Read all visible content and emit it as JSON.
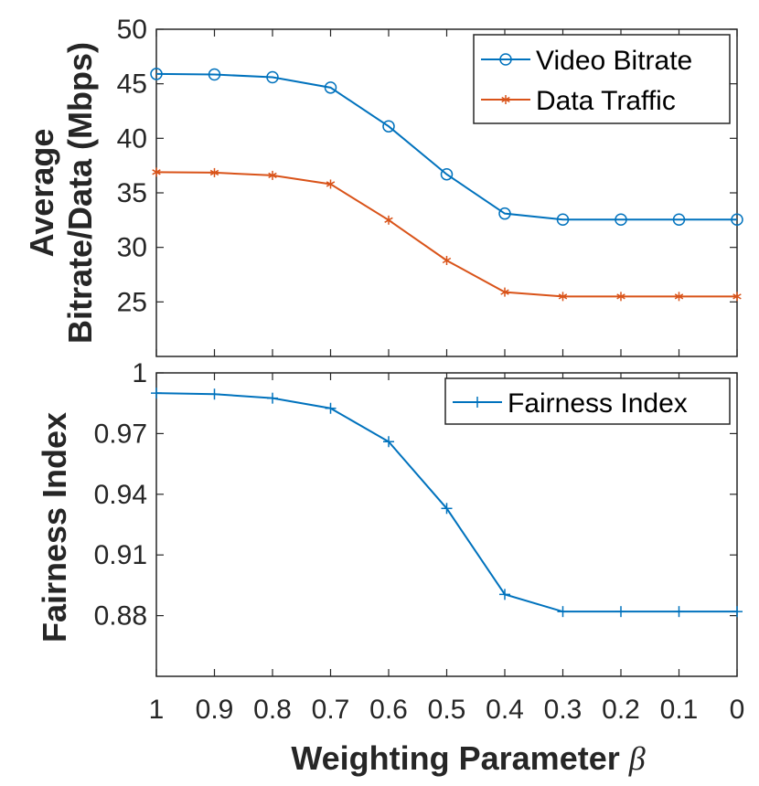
{
  "chart_data": [
    {
      "type": "line",
      "ylabel_line1": "Average",
      "ylabel_line2": "Bitrate/Data (Mbps)",
      "xlim": [
        1,
        0
      ],
      "ylim": [
        20,
        50
      ],
      "yticks": [
        25,
        30,
        35,
        40,
        45,
        50
      ],
      "x": [
        1,
        0.9,
        0.8,
        0.7,
        0.6,
        0.5,
        0.4,
        0.3,
        0.2,
        0.1,
        0
      ],
      "legend_position": "top-right",
      "series": [
        {
          "name": "Video Bitrate",
          "marker": "circle",
          "color": "#0072BD",
          "values": [
            45.9,
            45.85,
            45.6,
            44.65,
            41.1,
            36.7,
            33.1,
            32.55,
            32.55,
            32.55,
            32.55
          ]
        },
        {
          "name": "Data Traffic",
          "marker": "asterisk",
          "color": "#D95319",
          "values": [
            36.9,
            36.85,
            36.6,
            35.8,
            32.5,
            28.8,
            25.9,
            25.5,
            25.5,
            25.5,
            25.5
          ]
        }
      ]
    },
    {
      "type": "line",
      "ylabel": "Fairness Index",
      "xlabel": "Weighting Parameter",
      "xlabel_symbol": "β",
      "xlim": [
        1,
        0
      ],
      "ylim": [
        0.85,
        1
      ],
      "yticks": [
        0.88,
        0.91,
        0.94,
        0.97,
        1
      ],
      "ytick_labels": [
        "0.88",
        "0.91",
        "0.94",
        "0.97",
        "1"
      ],
      "x": [
        1,
        0.9,
        0.8,
        0.7,
        0.6,
        0.5,
        0.4,
        0.3,
        0.2,
        0.1,
        0
      ],
      "xtick_labels": [
        "1",
        "0.9",
        "0.8",
        "0.7",
        "0.6",
        "0.5",
        "0.4",
        "0.3",
        "0.2",
        "0.1",
        "0"
      ],
      "legend_position": "top-right",
      "series": [
        {
          "name": "Fairness Index",
          "marker": "plus",
          "color": "#0072BD",
          "values": [
            0.99,
            0.9895,
            0.9875,
            0.9825,
            0.966,
            0.933,
            0.8905,
            0.882,
            0.882,
            0.882,
            0.882
          ]
        }
      ]
    }
  ]
}
